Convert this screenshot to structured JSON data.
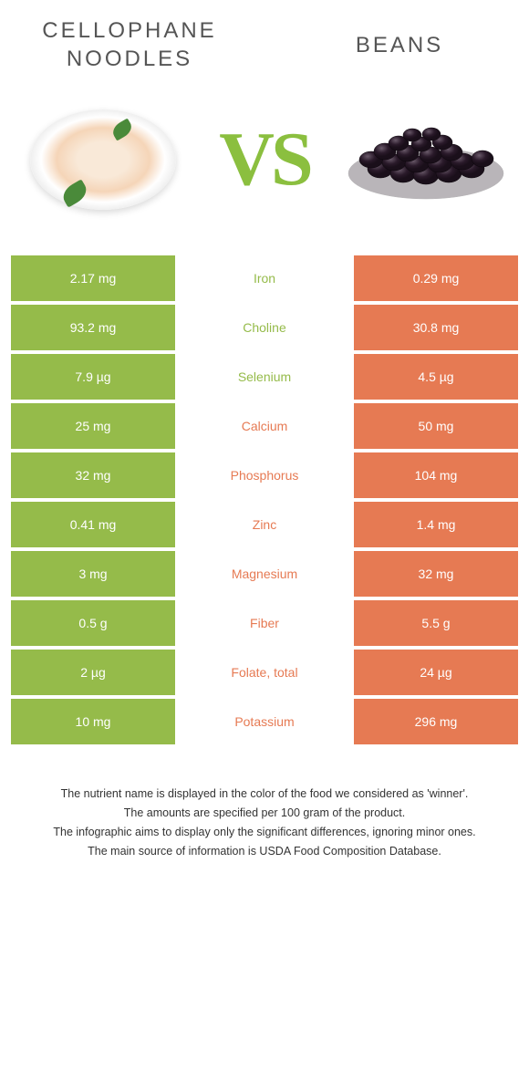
{
  "colors": {
    "green": "#95bb4a",
    "orange": "#e67a53",
    "title": "#555555",
    "text": "#333333",
    "background": "#ffffff"
  },
  "header": {
    "left_title": "CELLOPHANE NOODLES",
    "right_title": "BEANS",
    "vs_text": "VS"
  },
  "nutrients": [
    {
      "name": "Iron",
      "left": "2.17 mg",
      "right": "0.29 mg",
      "winner": "left"
    },
    {
      "name": "Choline",
      "left": "93.2 mg",
      "right": "30.8 mg",
      "winner": "left"
    },
    {
      "name": "Selenium",
      "left": "7.9 µg",
      "right": "4.5 µg",
      "winner": "left"
    },
    {
      "name": "Calcium",
      "left": "25 mg",
      "right": "50 mg",
      "winner": "right"
    },
    {
      "name": "Phosphorus",
      "left": "32 mg",
      "right": "104 mg",
      "winner": "right"
    },
    {
      "name": "Zinc",
      "left": "0.41 mg",
      "right": "1.4 mg",
      "winner": "right"
    },
    {
      "name": "Magnesium",
      "left": "3 mg",
      "right": "32 mg",
      "winner": "right"
    },
    {
      "name": "Fiber",
      "left": "0.5 g",
      "right": "5.5 g",
      "winner": "right"
    },
    {
      "name": "Folate, total",
      "left": "2 µg",
      "right": "24 µg",
      "winner": "right"
    },
    {
      "name": "Potassium",
      "left": "10 mg",
      "right": "296 mg",
      "winner": "right"
    }
  ],
  "footnotes": [
    "The nutrient name is displayed in the color of the food we considered as 'winner'.",
    "The amounts are specified per 100 gram of the product.",
    "The infographic aims to display only the significant differences, ignoring minor ones.",
    "The main source of information is USDA Food Composition Database."
  ]
}
